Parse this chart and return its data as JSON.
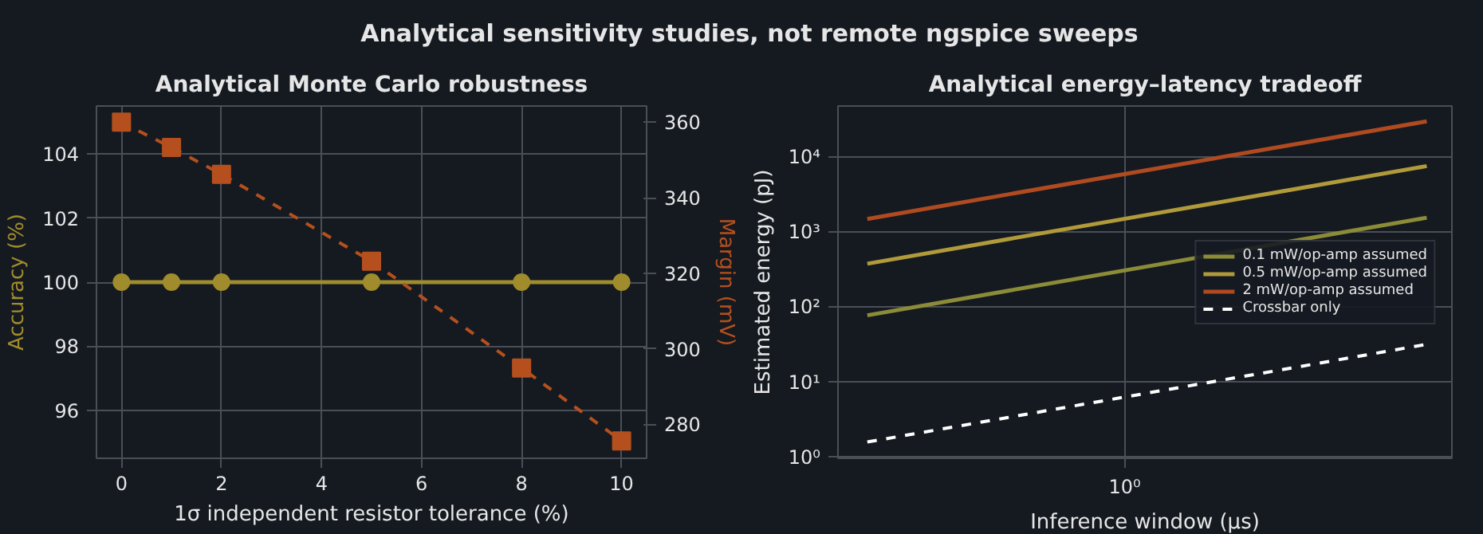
{
  "chart_data": [
    {
      "type": "line",
      "title": "Analytical Monte Carlo robustness",
      "xlabel": "1σ independent resistor tolerance (%)",
      "ylabel": "Accuracy (%)",
      "y2label": "Margin (mV)",
      "annotations": [
        "Analytical sensitivity studies, not remote ngspice sweeps"
      ],
      "x": [
        0,
        1,
        2,
        5,
        8,
        10
      ],
      "xlim": [
        -0.5,
        10.5
      ],
      "xticks": [
        0,
        2,
        4,
        6,
        8,
        10
      ],
      "ylim": [
        94.5,
        105.5
      ],
      "yticks": [
        96,
        98,
        100,
        102,
        104
      ],
      "y2lim": [
        271,
        364.3
      ],
      "y2ticks": [
        280,
        300,
        320,
        340,
        360
      ],
      "grid": true,
      "legend": false,
      "series": [
        {
          "color": "#a08c2c",
          "values": [
            100,
            100,
            100,
            100,
            100,
            100
          ],
          "marker": "circle",
          "line_style": "solid"
        },
        {
          "color": "#b5501e",
          "values": [
            360,
            353.3,
            346.2,
            323.2,
            294.9,
            275.6
          ],
          "marker": "square",
          "line_style": "dashed",
          "axis": "y2"
        }
      ]
    },
    {
      "type": "line",
      "title": "Analytical energy–latency tradeoff",
      "xlabel": "Inference window (µs)",
      "ylabel": "Estimated energy (pJ)",
      "log": "y",
      "annotations": [
        "10⁰"
      ],
      "categories": [
        null,
        null,
        null,
        null,
        null
      ],
      "ylim": [
        0.97,
        48000
      ],
      "yticks": [
        {
          "value": 1,
          "label": "10⁰"
        },
        {
          "value": 10,
          "label": "10¹"
        },
        {
          "value": 100,
          "label": "10²"
        },
        {
          "value": 1000,
          "label": "10³"
        },
        {
          "value": 10000,
          "label": "10⁴"
        }
      ],
      "grid": true,
      "legend": "right",
      "marker": "none",
      "series": [
        {
          "name": "0.1 mW/op-amp assumed",
          "color": "#8c8c38",
          "values": [
            78,
            165,
            349,
            738,
            1560
          ],
          "line_style": "solid"
        },
        {
          "name": "0.5 mW/op-amp assumed",
          "color": "#b09a3a",
          "values": [
            380,
            804,
            1700,
            3595,
            7600
          ],
          "line_style": "solid"
        },
        {
          "name": "2 mW/op-amp assumed",
          "color": "#b04a20",
          "values": [
            1500,
            3172,
            6708,
            14190,
            30000
          ],
          "line_style": "solid"
        },
        {
          "name": "Crossbar only",
          "color": "#ffffff",
          "values": [
            1.6,
            3.38,
            7.16,
            15.1,
            32
          ],
          "line_style": "dashed"
        }
      ]
    }
  ]
}
